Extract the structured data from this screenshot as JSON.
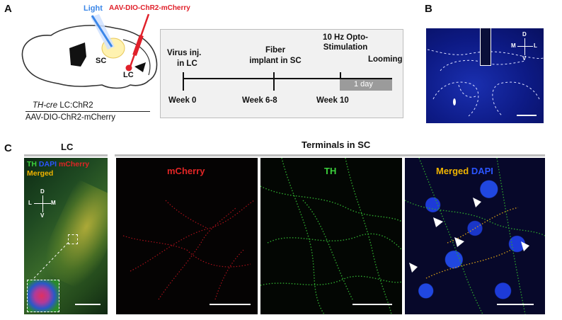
{
  "panelA": {
    "label": "A",
    "light": "Light",
    "virus": "AAV-DIO-ChR2-mCherry",
    "sc": "SC",
    "lc": "LC",
    "genotype_italic": "TH-cre",
    "genotype_rest": " LC:ChR2",
    "genotype_virus": "AAV-DIO-ChR2-mCherry",
    "timeline": {
      "events": [
        {
          "line1": "Virus inj.",
          "line2": "in LC"
        },
        {
          "line1": "Fiber",
          "line2": "implant in SC"
        },
        {
          "line1": "10 Hz Opto-",
          "line2": "Stimulation"
        },
        {
          "line1": "Looming",
          "line2": ""
        }
      ],
      "weeks": [
        "Week 0",
        "Week 6-8",
        "Week 10"
      ],
      "day_label": "1 day"
    },
    "colors": {
      "light": "#3a86e8",
      "virus": "#e0202a"
    }
  },
  "panelB": {
    "label": "B",
    "compass": {
      "d": "D",
      "v": "V",
      "m": "M",
      "l": "L"
    }
  },
  "panelC": {
    "label": "C",
    "lc_title": "LC",
    "terminals_title": "Terminals in SC",
    "legend": {
      "th": "TH",
      "dapi": "DAPI",
      "mcherry": "mCherry",
      "merged": "Merged"
    },
    "compass": {
      "d": "D",
      "v": "V",
      "l": "L",
      "m": "M"
    },
    "panels": [
      {
        "title": "mCherry",
        "color": "#e02525"
      },
      {
        "title": "TH",
        "color": "#3ccf3c"
      },
      {
        "title_a": "Merged",
        "title_b": " DAPI",
        "color_a": "#f0b400",
        "color_b": "#2b55ff"
      }
    ]
  }
}
